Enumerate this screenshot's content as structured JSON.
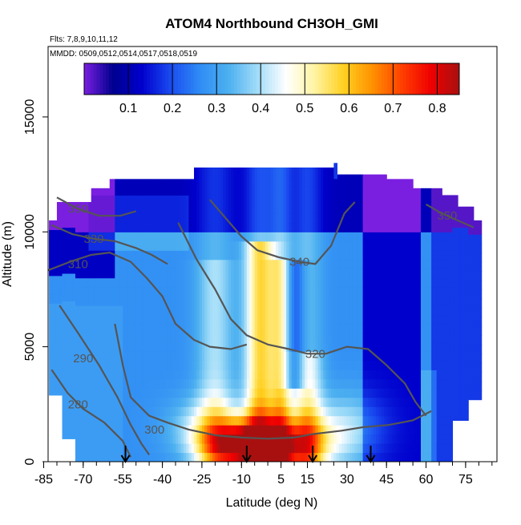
{
  "chart_data": {
    "type": "heatmap",
    "title": "ATOM4 Northbound CH3OH_GMI",
    "subtitle_flights": "Flts: 7,8,9,10,11,12",
    "subtitle_dates": "MMDD: 0509,0512,0514,0517,0518,0519",
    "xlabel": "Latitude (deg N)",
    "ylabel": "Altitude (m)",
    "xlim": [
      -85,
      85
    ],
    "ylim": [
      0,
      18000
    ],
    "x_ticks": [
      "-85",
      "-70",
      "-55",
      "-40",
      "-25",
      "-10",
      "5",
      "15",
      "30",
      "45",
      "60",
      "75"
    ],
    "x_tick_values": [
      -85,
      -70,
      -55,
      -40,
      -25,
      -10,
      5,
      15,
      30,
      45,
      60,
      75
    ],
    "y_ticks": [
      "0",
      "5000",
      "10000",
      "15000"
    ],
    "y_tick_values": [
      0,
      5000,
      10000,
      15000
    ],
    "colorbar": {
      "range": [
        0,
        0.85
      ],
      "ticks": [
        "0.1",
        "0.2",
        "0.3",
        "0.4",
        "0.5",
        "0.6",
        "0.7",
        "0.8"
      ],
      "tick_values": [
        0.1,
        0.2,
        0.3,
        0.4,
        0.5,
        0.6,
        0.7,
        0.8
      ],
      "colors": [
        "#7a1fe0",
        "#00008f",
        "#0000cd",
        "#1a4cf0",
        "#2f8cf5",
        "#4cb0f0",
        "#a0dcf8",
        "#ffffff",
        "#fff3a0",
        "#ffd020",
        "#ff9000",
        "#ff4000",
        "#f00000",
        "#a81010"
      ]
    },
    "flight_markers_lat": [
      -54,
      -8,
      17,
      39
    ],
    "contours": [
      {
        "label": "280",
        "label_lat": -72,
        "label_alt": 2500,
        "points": [
          [
            -82,
            4000
          ],
          [
            -76,
            3000
          ],
          [
            -70,
            2300
          ],
          [
            -62,
            1700
          ],
          [
            -55,
            900
          ],
          [
            -52,
            200
          ]
        ]
      },
      {
        "label": "290",
        "label_lat": -70,
        "label_alt": 4500,
        "points": [
          [
            -79,
            6800
          ],
          [
            -72,
            5600
          ],
          [
            -64,
            4200
          ],
          [
            -57,
            2800
          ],
          [
            -52,
            1600
          ],
          [
            -48,
            800
          ],
          [
            -45,
            300
          ]
        ]
      },
      {
        "label": "300",
        "label_lat": -43,
        "label_alt": 1400,
        "points": [
          [
            -58,
            6000
          ],
          [
            -55,
            4200
          ],
          [
            -52,
            2800
          ],
          [
            -45,
            2000
          ],
          [
            -38,
            1700
          ],
          [
            -30,
            1400
          ],
          [
            -20,
            1150
          ],
          [
            -10,
            1050
          ],
          [
            0,
            1000
          ],
          [
            10,
            1050
          ],
          [
            17,
            1200
          ],
          [
            28,
            1350
          ],
          [
            36,
            1500
          ],
          [
            46,
            1600
          ],
          [
            55,
            1800
          ],
          [
            62,
            2200
          ]
        ]
      },
      {
        "label": "310",
        "label_lat": -72,
        "label_alt": 8600,
        "points": [
          [
            -84,
            8300
          ],
          [
            -75,
            8700
          ],
          [
            -67,
            9000
          ],
          [
            -60,
            9100
          ],
          [
            -52,
            8700
          ],
          [
            -46,
            8000
          ],
          [
            -40,
            7200
          ],
          [
            -35,
            6000
          ],
          [
            -28,
            5300
          ],
          [
            -22,
            5000
          ],
          [
            -14,
            4900
          ],
          [
            -8,
            5100
          ]
        ]
      },
      {
        "label": "320",
        "label_lat": 18,
        "label_alt": 4700,
        "points": [
          [
            -34,
            10400
          ],
          [
            -27,
            8800
          ],
          [
            -20,
            7500
          ],
          [
            -14,
            6200
          ],
          [
            -8,
            5500
          ],
          [
            0,
            5100
          ],
          [
            8,
            4900
          ],
          [
            15,
            4700
          ],
          [
            22,
            4700
          ],
          [
            30,
            5000
          ],
          [
            38,
            4900
          ],
          [
            45,
            4200
          ],
          [
            52,
            3400
          ],
          [
            56,
            2600
          ],
          [
            60,
            2000
          ]
        ]
      },
      {
        "label": "330",
        "label_lat": -66,
        "label_alt": 9700,
        "points": [
          [
            -82,
            10300
          ],
          [
            -74,
            9900
          ],
          [
            -66,
            9700
          ],
          [
            -58,
            9600
          ],
          [
            -50,
            9300
          ],
          [
            -44,
            9000
          ],
          [
            -38,
            8600
          ]
        ]
      },
      {
        "label": "340",
        "label_lat": 12,
        "label_alt": 8700,
        "points": [
          [
            -22,
            11400
          ],
          [
            -16,
            10600
          ],
          [
            -10,
            9800
          ],
          [
            -4,
            9200
          ],
          [
            4,
            8900
          ],
          [
            12,
            8700
          ],
          [
            18,
            8600
          ],
          [
            24,
            9400
          ],
          [
            29,
            10800
          ],
          [
            33,
            11300
          ]
        ]
      },
      {
        "label": "350",
        "label_lat": -72,
        "label_alt": 11000,
        "points": [
          [
            -80,
            11500
          ],
          [
            -72,
            11000
          ],
          [
            -64,
            10700
          ],
          [
            -56,
            10700
          ],
          [
            -50,
            10900
          ]
        ]
      },
      {
        "label": "350",
        "label_lat": 68,
        "label_alt": 10700,
        "points": [
          [
            60,
            11200
          ],
          [
            66,
            10800
          ],
          [
            72,
            10500
          ],
          [
            78,
            10200
          ]
        ]
      }
    ]
  }
}
